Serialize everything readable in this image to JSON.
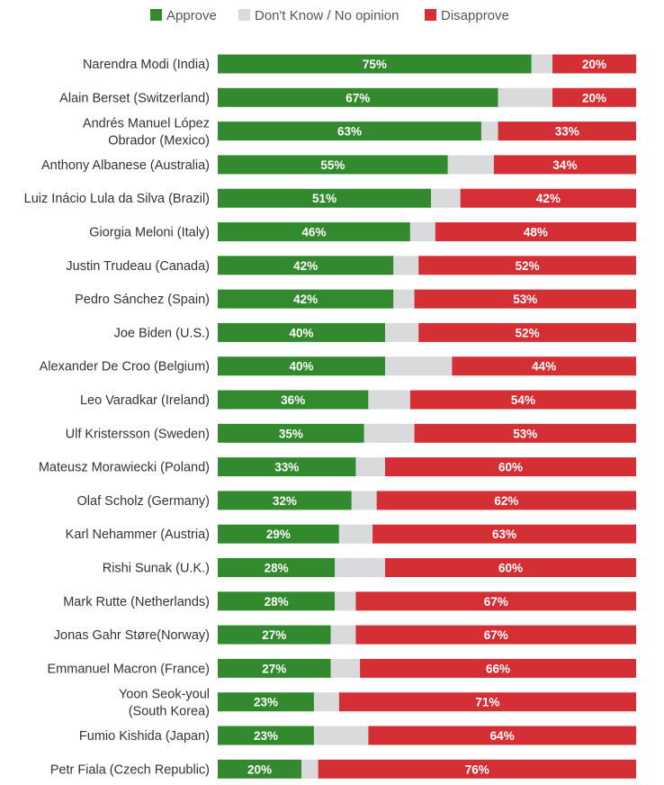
{
  "chart_data": {
    "type": "bar",
    "orientation": "horizontal",
    "stacked": true,
    "normalized": true,
    "legend_position": "top",
    "grid": false,
    "series": [
      {
        "name": "Approve",
        "color": "#338a2e",
        "label_suffix": "%",
        "show_labels": true,
        "values": [
          75,
          67,
          63,
          55,
          51,
          46,
          42,
          42,
          40,
          40,
          36,
          35,
          33,
          32,
          29,
          28,
          28,
          27,
          27,
          23,
          23,
          20
        ]
      },
      {
        "name": "Don't Know / No opinion",
        "color": "#d8dadb",
        "show_labels": false,
        "values": [
          5,
          13,
          4,
          11,
          7,
          6,
          6,
          5,
          8,
          16,
          10,
          12,
          7,
          6,
          8,
          12,
          5,
          6,
          7,
          6,
          13,
          4
        ]
      },
      {
        "name": "Disapprove",
        "color": "#d32f34",
        "label_suffix": "%",
        "show_labels": true,
        "values": [
          20,
          20,
          33,
          34,
          42,
          48,
          52,
          53,
          52,
          44,
          54,
          53,
          60,
          62,
          63,
          60,
          67,
          67,
          66,
          71,
          64,
          76
        ]
      }
    ],
    "categories": [
      [
        "Narendra Modi (India)"
      ],
      [
        "Alain Berset (Switzerland)"
      ],
      [
        "Andrés Manuel López",
        "Obrador (Mexico)"
      ],
      [
        "Anthony Albanese (Australia)"
      ],
      [
        "Luiz Inácio Lula da Silva (Brazil)"
      ],
      [
        "Giorgia Meloni (Italy)"
      ],
      [
        "Justin Trudeau (Canada)"
      ],
      [
        "Pedro Sánchez (Spain)"
      ],
      [
        "Joe Biden (U.S.)"
      ],
      [
        "Alexander De Croo (Belgium)"
      ],
      [
        "Leo Varadkar (Ireland)"
      ],
      [
        "Ulf Kristersson (Sweden)"
      ],
      [
        "Mateusz Morawiecki (Poland)"
      ],
      [
        "Olaf Scholz (Germany)"
      ],
      [
        "Karl Nehammer (Austria)"
      ],
      [
        "Rishi Sunak (U.K.)"
      ],
      [
        "Mark Rutte (Netherlands)"
      ],
      [
        "Jonas Gahr Støre(Norway)"
      ],
      [
        "Emmanuel Macron (France)"
      ],
      [
        "Yoon Seok-youl",
        "(South Korea)"
      ],
      [
        "Fumio Kishida (Japan)"
      ],
      [
        "Petr Fiala (Czech Republic)"
      ]
    ]
  }
}
